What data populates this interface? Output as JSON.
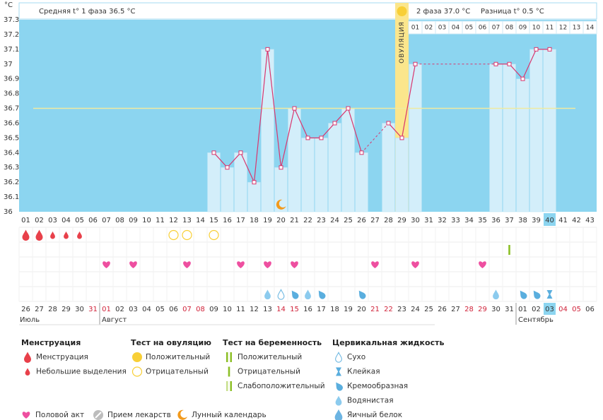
{
  "chart_data": {
    "type": "bbt",
    "y_label": "°C",
    "header": {
      "phase1": "Средняя t° 1 фаза 36.5 °C",
      "phase2": "2 фаза 37.0 °C",
      "difference": "Разница t° 0.5 °C"
    },
    "ylim": [
      36,
      37.3
    ],
    "yticks": [
      36,
      36.1,
      36.2,
      36.3,
      36.4,
      36.5,
      36.6,
      36.7,
      36.8,
      36.9,
      37,
      37.1,
      37.2,
      37.3
    ],
    "grid": false,
    "categories": [
      "01",
      "02",
      "03",
      "04",
      "05",
      "06",
      "07",
      "08",
      "09",
      "10",
      "11",
      "12",
      "13",
      "14",
      "15",
      "16",
      "17",
      "18",
      "19",
      "20",
      "21",
      "22",
      "23",
      "24",
      "25",
      "26",
      "27",
      "28",
      "29",
      "30",
      "31",
      "32",
      "33",
      "34",
      "35",
      "36",
      "37",
      "38",
      "39",
      "40",
      "41",
      "42",
      "43"
    ],
    "values": [
      null,
      null,
      null,
      null,
      null,
      null,
      null,
      null,
      null,
      null,
      null,
      null,
      null,
      null,
      36.4,
      36.3,
      36.4,
      36.2,
      37.1,
      36.3,
      36.7,
      36.5,
      36.5,
      36.6,
      36.7,
      36.4,
      null,
      36.6,
      36.5,
      37,
      null,
      null,
      null,
      null,
      null,
      37,
      37,
      36.9,
      37.1,
      37.1,
      null,
      null,
      null
    ],
    "coverline": 36.7,
    "ovulation_day": 29,
    "ovulation_label": "ОВУЛЯЦИЯ",
    "today_day": 40,
    "post_ovulation_days": [
      "01",
      "02",
      "03",
      "04",
      "05",
      "06",
      "07",
      "08",
      "09",
      "10",
      "11",
      "12",
      "13",
      "14"
    ],
    "dates": [
      "26",
      "27",
      "28",
      "29",
      "30",
      "31",
      "01",
      "02",
      "03",
      "04",
      "05",
      "06",
      "07",
      "08",
      "09",
      "10",
      "11",
      "12",
      "13",
      "14",
      "15",
      "16",
      "17",
      "18",
      "19",
      "20",
      "21",
      "22",
      "23",
      "24",
      "25",
      "26",
      "27",
      "28",
      "29",
      "30",
      "31",
      "01",
      "02",
      "03",
      "04",
      "05",
      "06"
    ],
    "weekend_days": [
      5,
      6,
      12,
      13,
      19,
      20,
      26,
      27,
      33,
      34,
      40,
      41
    ],
    "months": [
      "Июль",
      "Август",
      "Сентябрь"
    ],
    "moon_day": 20,
    "menstruation": [
      {
        "day": 1,
        "icon": "heavy"
      },
      {
        "day": 2,
        "icon": "heavy"
      },
      {
        "day": 3,
        "icon": "light"
      },
      {
        "day": 4,
        "icon": "light"
      },
      {
        "day": 5,
        "icon": "light"
      }
    ],
    "ovulation_tests": [
      {
        "day": 12,
        "icon": "ovu_negative"
      },
      {
        "day": 13,
        "icon": "ovu_negative"
      },
      {
        "day": 15,
        "icon": "ovu_negative"
      }
    ],
    "pregnancy_tests": [
      {
        "day": 37,
        "icon": "preg_negative"
      }
    ],
    "intercourse": [
      7,
      9,
      13,
      17,
      19,
      21,
      27,
      30,
      35
    ],
    "cervical_fluid": [
      {
        "day": 19,
        "icon": "watery"
      },
      {
        "day": 20,
        "icon": "dry"
      },
      {
        "day": 21,
        "icon": "creamy"
      },
      {
        "day": 22,
        "icon": "watery"
      },
      {
        "day": 23,
        "icon": "creamy"
      },
      {
        "day": 26,
        "icon": "creamy"
      },
      {
        "day": 36,
        "icon": "watery"
      },
      {
        "day": 38,
        "icon": "creamy"
      },
      {
        "day": 39,
        "icon": "creamy"
      },
      {
        "day": 40,
        "icon": "sticky"
      }
    ],
    "colors": {
      "background": "#8cd5f0",
      "bar": "#d3eefa",
      "line": "#d9366e",
      "coverline": "#f0eaa0",
      "ovulation": "#fbe68c",
      "weekend": "#d0233a",
      "today": "#8cd5f0"
    },
    "icon_colors": {
      "heavy": "#e8404a",
      "light": "#e8404a",
      "ovu_positive": "#f8cf36",
      "ovu_negative": "#f8cf36",
      "preg_positive": "#8cbf26",
      "preg_negative": "#8cbf26",
      "preg_weak": "#8cbf26",
      "dry": "#6fb8e2",
      "sticky": "#5aaede",
      "creamy": "#5aaede",
      "watery": "#8ccbee",
      "eggwhite": "#6cb4e2",
      "heart": "#ee4fa0",
      "pill": "#bdbdbd",
      "moon": "#f29a1c"
    }
  },
  "legend": [
    {
      "title": "Менструация",
      "items": [
        {
          "label": "Менструация",
          "icon": "heavy"
        },
        {
          "label": "Небольшие выделения",
          "icon": "light"
        }
      ]
    },
    {
      "title": "Тест на овуляцию",
      "items": [
        {
          "label": "Положительный",
          "icon": "ovu_positive"
        },
        {
          "label": "Отрицательный",
          "icon": "ovu_negative"
        }
      ]
    },
    {
      "title": "Тест на беременность",
      "items": [
        {
          "label": "Положительный",
          "icon": "preg_positive"
        },
        {
          "label": "Отрицательный",
          "icon": "preg_negative"
        },
        {
          "label": "Слабоположительный",
          "icon": "preg_weak"
        }
      ]
    },
    {
      "title": "Цервикальная жидкость",
      "items": [
        {
          "label": "Сухо",
          "icon": "dry"
        },
        {
          "label": "Клейкая",
          "icon": "sticky"
        },
        {
          "label": "Кремообразная",
          "icon": "creamy"
        },
        {
          "label": "Водянистая",
          "icon": "watery"
        },
        {
          "label": "Яичный белок",
          "icon": "eggwhite"
        }
      ]
    }
  ],
  "legend_extra": [
    {
      "label": "Половой акт",
      "icon": "heart"
    },
    {
      "label": "Прием лекарств",
      "icon": "pill"
    },
    {
      "label": "Лунный календарь",
      "icon": "moon"
    }
  ]
}
